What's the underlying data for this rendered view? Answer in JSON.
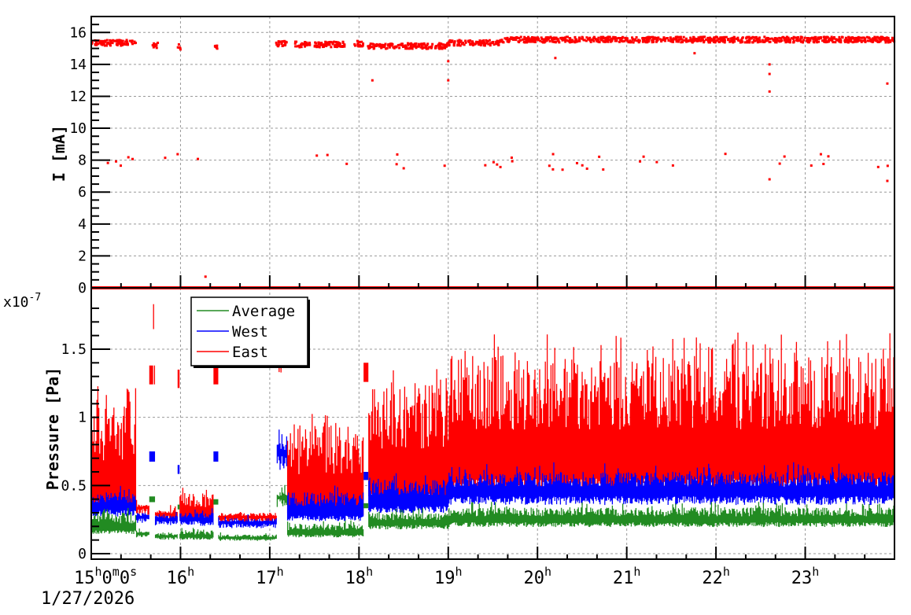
{
  "chart_data": [
    {
      "id": "current",
      "type": "scatter",
      "title": "",
      "xlabel": "",
      "ylabel": "I [mA]",
      "ylim": [
        0,
        17
      ],
      "yticks": [
        0,
        2,
        4,
        6,
        8,
        10,
        12,
        14,
        16
      ],
      "grid": true,
      "color": "#ff0000",
      "clusters": [
        {
          "name": "operating",
          "x_range": [
            15.0,
            24.0
          ],
          "level_segments": [
            {
              "x": [
                15.0,
                15.5
              ],
              "y": 15.35
            },
            {
              "x": [
                15.68,
                15.75
              ],
              "y": 15.2
            },
            {
              "x": [
                15.97,
                16.0
              ],
              "y": 15.1
            },
            {
              "x": [
                16.38,
                16.42
              ],
              "y": 15.0
            },
            {
              "x": [
                17.07,
                17.2
              ],
              "y": 15.3
            },
            {
              "x": [
                17.28,
                17.45
              ],
              "y": 15.25
            },
            {
              "x": [
                17.5,
                17.85
              ],
              "y": 15.25
            },
            {
              "x": [
                17.95,
                18.05
              ],
              "y": 15.3
            },
            {
              "x": [
                18.1,
                19.0
              ],
              "y": 15.15
            },
            {
              "x": [
                19.0,
                19.6
              ],
              "y": 15.35
            },
            {
              "x": [
                19.6,
                24.0
              ],
              "y": 15.55
            }
          ]
        },
        {
          "name": "half-current",
          "y_approx": 7.9
        },
        {
          "name": "off",
          "y": 0.0
        }
      ],
      "outliers": [
        {
          "x": 16.28,
          "y": 0.7
        },
        {
          "x": 18.15,
          "y": 13.0
        },
        {
          "x": 19.0,
          "y": 13.0
        },
        {
          "x": 19.0,
          "y": 14.2
        },
        {
          "x": 20.2,
          "y": 14.4
        },
        {
          "x": 21.76,
          "y": 14.7
        },
        {
          "x": 22.6,
          "y": 12.3
        },
        {
          "x": 22.6,
          "y": 13.4
        },
        {
          "x": 22.6,
          "y": 14.0
        },
        {
          "x": 22.6,
          "y": 6.8
        },
        {
          "x": 23.92,
          "y": 12.8
        },
        {
          "x": 23.92,
          "y": 6.7
        }
      ]
    },
    {
      "id": "pressure",
      "type": "line",
      "title": "",
      "xlabel": "",
      "ylabel": "Pressure [Pa]",
      "y_multiplier": "x10^-7",
      "ylim": [
        0,
        1.9
      ],
      "yticks": [
        0,
        0.5,
        1,
        1.5
      ],
      "ytick_labels": [
        "0",
        "0.5",
        "1",
        "1.5"
      ],
      "grid": true,
      "legend_position": "upper-left",
      "series": [
        {
          "name": "Average",
          "color": "#228b22",
          "segments": [
            {
              "x": [
                15.0,
                15.5
              ],
              "base": 0.17,
              "peak": 0.3
            },
            {
              "x": [
                15.5,
                15.7
              ],
              "base": 0.14,
              "peak": 0.17
            },
            {
              "x": [
                15.7,
                15.97
              ],
              "base": 0.12,
              "peak": 0.15
            },
            {
              "x": [
                15.97,
                16.38
              ],
              "base": 0.12,
              "peak": 0.17
            },
            {
              "x": [
                16.38,
                17.08
              ],
              "base": 0.11,
              "peak": 0.14
            },
            {
              "x": [
                17.08,
                17.2
              ],
              "base": 0.4,
              "peak": 0.45
            },
            {
              "x": [
                17.2,
                18.1
              ],
              "base": 0.14,
              "peak": 0.22
            },
            {
              "x": [
                18.1,
                19.0
              ],
              "base": 0.21,
              "peak": 0.3
            },
            {
              "x": [
                19.0,
                24.0
              ],
              "base": 0.23,
              "peak": 0.34
            }
          ]
        },
        {
          "name": "West",
          "color": "#0000ff",
          "segments": [
            {
              "x": [
                15.0,
                15.5
              ],
              "base": 0.32,
              "peak": 0.45
            },
            {
              "x": [
                15.5,
                15.7
              ],
              "base": 0.26,
              "peak": 0.3
            },
            {
              "x": [
                15.7,
                15.97
              ],
              "base": 0.24,
              "peak": 0.28
            },
            {
              "x": [
                15.97,
                16.38
              ],
              "base": 0.24,
              "peak": 0.3
            },
            {
              "x": [
                16.38,
                17.08
              ],
              "base": 0.22,
              "peak": 0.26
            },
            {
              "x": [
                17.08,
                17.2
              ],
              "base": 0.72,
              "peak": 0.82
            },
            {
              "x": [
                17.2,
                18.1
              ],
              "base": 0.28,
              "peak": 0.45
            },
            {
              "x": [
                18.1,
                19.0
              ],
              "base": 0.35,
              "peak": 0.55
            },
            {
              "x": [
                19.0,
                24.0
              ],
              "base": 0.42,
              "peak": 0.6
            }
          ]
        },
        {
          "name": "East",
          "color": "#ff0000",
          "segments": [
            {
              "x": [
                15.0,
                15.5
              ],
              "base": 0.4,
              "peak": 1.1
            },
            {
              "x": [
                15.5,
                15.7
              ],
              "base": 0.33,
              "peak": 0.36
            },
            {
              "x": [
                15.7,
                15.97
              ],
              "base": 0.28,
              "peak": 0.32
            },
            {
              "x": [
                15.97,
                16.38
              ],
              "base": 0.27,
              "peak": 0.45
            },
            {
              "x": [
                16.38,
                17.08
              ],
              "base": 0.26,
              "peak": 0.3
            },
            {
              "x": [
                17.08,
                17.2
              ],
              "base": 1.55,
              "peak": 1.62
            },
            {
              "x": [
                17.2,
                18.1
              ],
              "base": 0.32,
              "peak": 0.95
            },
            {
              "x": [
                18.1,
                19.0
              ],
              "base": 0.45,
              "peak": 1.25
            },
            {
              "x": [
                19.0,
                24.0
              ],
              "base": 0.55,
              "peak": 1.45
            }
          ]
        }
      ],
      "spikes": [
        {
          "x": 15.68,
          "east": 1.83,
          "west": 0.75,
          "avg": 0.42,
          "width": 0.06,
          "plateau_east": 1.38
        },
        {
          "x": 15.98,
          "east": 1.38,
          "west": 0.65,
          "avg": 0.36,
          "width": 0.02,
          "plateau_east": 1.35
        },
        {
          "x": 16.4,
          "east": 1.43,
          "west": 0.75,
          "avg": 0.4,
          "width": 0.05,
          "plateau_east": 1.38
        },
        {
          "x": 18.08,
          "east": 1.5,
          "west": 0.6,
          "avg": 0.37,
          "width": 0.05,
          "plateau_east": 1.4
        }
      ]
    }
  ],
  "x_axis": {
    "range_hours": [
      15.0,
      24.0
    ],
    "ticks": [
      {
        "hour": 15,
        "label": "15",
        "sup": "h",
        "extra": "0",
        "sup2": "m",
        "extra2": "0",
        "sup3": "s"
      },
      {
        "hour": 16,
        "label": "16",
        "sup": "h"
      },
      {
        "hour": 17,
        "label": "17",
        "sup": "h"
      },
      {
        "hour": 18,
        "label": "18",
        "sup": "h"
      },
      {
        "hour": 19,
        "label": "19",
        "sup": "h"
      },
      {
        "hour": 20,
        "label": "20",
        "sup": "h"
      },
      {
        "hour": 21,
        "label": "21",
        "sup": "h"
      },
      {
        "hour": 22,
        "label": "22",
        "sup": "h"
      },
      {
        "hour": 23,
        "label": "23",
        "sup": "h"
      }
    ],
    "date_label": "1/27/2026"
  },
  "labels": {
    "top_ylabel": "I [mA]",
    "bottom_ylabel": "Pressure [Pa]",
    "multiplier_base": "x10",
    "multiplier_exp": "-7"
  },
  "legend": [
    {
      "name": "Average",
      "color": "#228b22"
    },
    {
      "name": "West",
      "color": "#0000ff"
    },
    {
      "name": "East",
      "color": "#ff0000"
    }
  ]
}
